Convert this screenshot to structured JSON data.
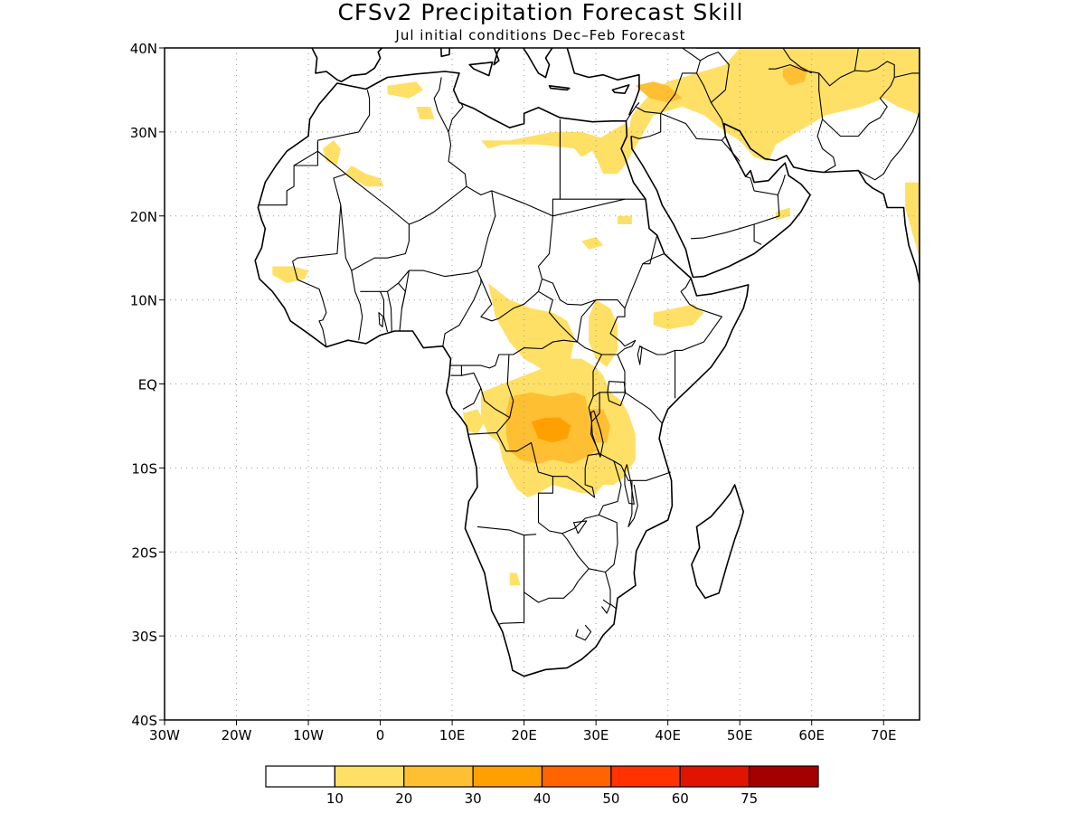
{
  "title": "CFSv2 Precipitation Forecast Skill",
  "subtitle": "Jul initial conditions  Dec–Feb Forecast",
  "map": {
    "lon_range": [
      -30,
      75
    ],
    "lat_range": [
      -40,
      40
    ],
    "lon_ticks": [
      {
        "value": -30,
        "label": "30W"
      },
      {
        "value": -20,
        "label": "20W"
      },
      {
        "value": -10,
        "label": "10W"
      },
      {
        "value": 0,
        "label": "0"
      },
      {
        "value": 10,
        "label": "10E"
      },
      {
        "value": 20,
        "label": "20E"
      },
      {
        "value": 30,
        "label": "30E"
      },
      {
        "value": 40,
        "label": "40E"
      },
      {
        "value": 50,
        "label": "50E"
      },
      {
        "value": 60,
        "label": "60E"
      },
      {
        "value": 70,
        "label": "70E"
      }
    ],
    "lat_ticks": [
      {
        "value": 40,
        "label": "40N"
      },
      {
        "value": 30,
        "label": "30N"
      },
      {
        "value": 20,
        "label": "20N"
      },
      {
        "value": 10,
        "label": "10N"
      },
      {
        "value": 0,
        "label": "EQ"
      },
      {
        "value": -10,
        "label": "10S"
      },
      {
        "value": -20,
        "label": "20S"
      },
      {
        "value": -30,
        "label": "30S"
      },
      {
        "value": -40,
        "label": "40S"
      }
    ],
    "grid": true
  },
  "legend": {
    "colors": [
      "#ffffff",
      "#ffe066",
      "#ffbf33",
      "#ffa000",
      "#ff6400",
      "#ff3200",
      "#e01400",
      "#a50000"
    ],
    "labels": [
      "10",
      "20",
      "30",
      "40",
      "50",
      "60",
      "75"
    ]
  },
  "skill_regions": [
    {
      "level": 1,
      "lonlat": [
        [
          15,
          12
        ],
        [
          18,
          10
        ],
        [
          21,
          9
        ],
        [
          24,
          8.5
        ],
        [
          26,
          7.5
        ],
        [
          27,
          5.5
        ],
        [
          26.5,
          3
        ],
        [
          26,
          1
        ],
        [
          23,
          1.5
        ],
        [
          20,
          3
        ],
        [
          18,
          5
        ],
        [
          16,
          8
        ]
      ]
    },
    {
      "level": 1,
      "lonlat": [
        [
          30,
          10
        ],
        [
          32,
          9
        ],
        [
          33,
          7
        ],
        [
          33,
          4
        ],
        [
          31.5,
          2
        ],
        [
          30,
          3
        ],
        [
          29,
          5
        ],
        [
          29,
          8
        ]
      ]
    },
    {
      "level": 1,
      "lonlat": [
        [
          14,
          -1
        ],
        [
          17,
          0
        ],
        [
          20,
          1
        ],
        [
          23,
          2
        ],
        [
          25.5,
          3
        ],
        [
          28,
          3
        ],
        [
          30,
          2
        ],
        [
          31,
          1
        ],
        [
          32,
          -1
        ],
        [
          33.5,
          -2
        ],
        [
          34.5,
          -3.5
        ],
        [
          35.5,
          -6
        ],
        [
          35.5,
          -9
        ],
        [
          34,
          -11
        ],
        [
          32.5,
          -12
        ],
        [
          31,
          -12
        ],
        [
          30,
          -13
        ],
        [
          28,
          -13
        ],
        [
          26,
          -12.5
        ],
        [
          24,
          -12
        ],
        [
          22,
          -13
        ],
        [
          20.5,
          -13.5
        ],
        [
          19,
          -12.5
        ],
        [
          18,
          -11
        ],
        [
          17,
          -9
        ],
        [
          16.5,
          -7
        ],
        [
          15,
          -6
        ],
        [
          14,
          -4
        ]
      ]
    },
    {
      "level": 1,
      "lonlat": [
        [
          11.5,
          -3.5
        ],
        [
          13.5,
          -3
        ],
        [
          14.5,
          -4.5
        ],
        [
          13.5,
          -6
        ],
        [
          12,
          -5.5
        ]
      ]
    },
    {
      "level": 1,
      "lonlat": [
        [
          38,
          8.5
        ],
        [
          41,
          9
        ],
        [
          43.5,
          9.5
        ],
        [
          45,
          8.5
        ],
        [
          43.5,
          7
        ],
        [
          40,
          6.5
        ],
        [
          38,
          7
        ]
      ]
    },
    {
      "level": 1,
      "lonlat": [
        [
          28,
          17
        ],
        [
          30,
          17.5
        ],
        [
          31,
          16.5
        ],
        [
          29,
          16
        ]
      ]
    },
    {
      "level": 1,
      "lonlat": [
        [
          -4,
          26
        ],
        [
          -2,
          25
        ],
        [
          0,
          24.5
        ],
        [
          0.5,
          23.5
        ],
        [
          -2,
          23.5
        ],
        [
          -5,
          25
        ]
      ]
    },
    {
      "level": 1,
      "lonlat": [
        [
          -8,
          28
        ],
        [
          -6.5,
          29
        ],
        [
          -5.5,
          28
        ],
        [
          -6,
          26
        ],
        [
          -7.5,
          26.5
        ]
      ]
    },
    {
      "level": 1,
      "lonlat": [
        [
          -15,
          14
        ],
        [
          -12,
          14
        ],
        [
          -10,
          13.5
        ],
        [
          -10.5,
          12.5
        ],
        [
          -13,
          12
        ],
        [
          -15,
          13
        ]
      ]
    },
    {
      "level": 1,
      "lonlat": [
        [
          1,
          35.5
        ],
        [
          5,
          36
        ],
        [
          6,
          35
        ],
        [
          4,
          34
        ],
        [
          1,
          34.5
        ]
      ]
    },
    {
      "level": 1,
      "lonlat": [
        [
          5,
          33
        ],
        [
          7,
          33
        ],
        [
          7.5,
          31.5
        ],
        [
          5.5,
          31.5
        ]
      ]
    },
    {
      "level": 1,
      "lonlat": [
        [
          14,
          29
        ],
        [
          18,
          29
        ],
        [
          21,
          29.5
        ],
        [
          24,
          30
        ],
        [
          28,
          30
        ],
        [
          30,
          29
        ],
        [
          32,
          30
        ],
        [
          34,
          31
        ],
        [
          35,
          30
        ],
        [
          33,
          29
        ],
        [
          30,
          28
        ],
        [
          28,
          27
        ],
        [
          27,
          28
        ],
        [
          22,
          28.5
        ],
        [
          17,
          28.5
        ],
        [
          15,
          28
        ]
      ]
    },
    {
      "level": 1,
      "lonlat": [
        [
          28,
          30
        ],
        [
          32,
          29
        ],
        [
          34.5,
          30
        ],
        [
          35,
          32
        ],
        [
          38,
          35
        ],
        [
          40,
          36
        ],
        [
          44,
          37
        ],
        [
          48,
          38
        ],
        [
          50,
          40
        ],
        [
          72,
          40
        ],
        [
          75,
          40
        ],
        [
          75,
          32
        ],
        [
          72,
          33
        ],
        [
          70,
          34
        ],
        [
          67,
          33
        ],
        [
          62,
          32
        ],
        [
          58,
          30
        ],
        [
          55,
          28.5
        ],
        [
          54,
          26.5
        ],
        [
          52,
          27
        ],
        [
          50,
          29
        ],
        [
          48,
          30
        ],
        [
          45,
          32
        ],
        [
          42,
          33
        ],
        [
          38,
          32
        ],
        [
          36,
          29
        ],
        [
          34,
          26
        ],
        [
          33,
          25
        ],
        [
          31,
          25
        ],
        [
          30,
          27
        ]
      ]
    },
    {
      "level": 1,
      "lonlat": [
        [
          73,
          24
        ],
        [
          75,
          24
        ],
        [
          75,
          15
        ],
        [
          74,
          18
        ],
        [
          73,
          21
        ]
      ]
    },
    {
      "level": 1,
      "lonlat": [
        [
          55,
          20.5
        ],
        [
          57,
          21
        ],
        [
          57,
          20
        ],
        [
          55,
          19.5
        ]
      ]
    },
    {
      "level": 1,
      "lonlat": [
        [
          33,
          20
        ],
        [
          35,
          20
        ],
        [
          35,
          19
        ],
        [
          33,
          19
        ]
      ]
    },
    {
      "level": 1,
      "lonlat": [
        [
          18,
          -22.5
        ],
        [
          19,
          -22.5
        ],
        [
          19.5,
          -24
        ],
        [
          18,
          -24
        ]
      ]
    },
    {
      "level": 2,
      "lonlat": [
        [
          18,
          -1.5
        ],
        [
          21,
          -1
        ],
        [
          24,
          -1.5
        ],
        [
          27,
          -1
        ],
        [
          28.5,
          -1.5
        ],
        [
          29,
          -3.5
        ],
        [
          29.5,
          -6
        ],
        [
          30,
          -8
        ],
        [
          28,
          -9
        ],
        [
          26.5,
          -9.5
        ],
        [
          24,
          -9
        ],
        [
          22,
          -9.5
        ],
        [
          19.5,
          -9
        ],
        [
          18,
          -8
        ],
        [
          17.5,
          -6
        ],
        [
          17.5,
          -3.5
        ]
      ]
    },
    {
      "level": 2,
      "lonlat": [
        [
          29,
          -3
        ],
        [
          31,
          -3
        ],
        [
          32,
          -5
        ],
        [
          31.5,
          -7
        ],
        [
          30,
          -7
        ],
        [
          29.5,
          -5
        ]
      ]
    },
    {
      "level": 2,
      "lonlat": [
        [
          35.5,
          35.5
        ],
        [
          38,
          36
        ],
        [
          40,
          35.5
        ],
        [
          42,
          34
        ],
        [
          40,
          33.5
        ],
        [
          37.5,
          34
        ]
      ]
    },
    {
      "level": 2,
      "lonlat": [
        [
          56,
          37.5
        ],
        [
          58,
          38
        ],
        [
          59.5,
          37.5
        ],
        [
          59,
          36
        ],
        [
          57,
          35.5
        ],
        [
          56,
          36.5
        ]
      ]
    },
    {
      "level": 3,
      "lonlat": [
        [
          21,
          -4.5
        ],
        [
          23,
          -4
        ],
        [
          25,
          -4
        ],
        [
          26.5,
          -5
        ],
        [
          26,
          -6.5
        ],
        [
          24,
          -7
        ],
        [
          22,
          -6.5
        ]
      ]
    }
  ]
}
